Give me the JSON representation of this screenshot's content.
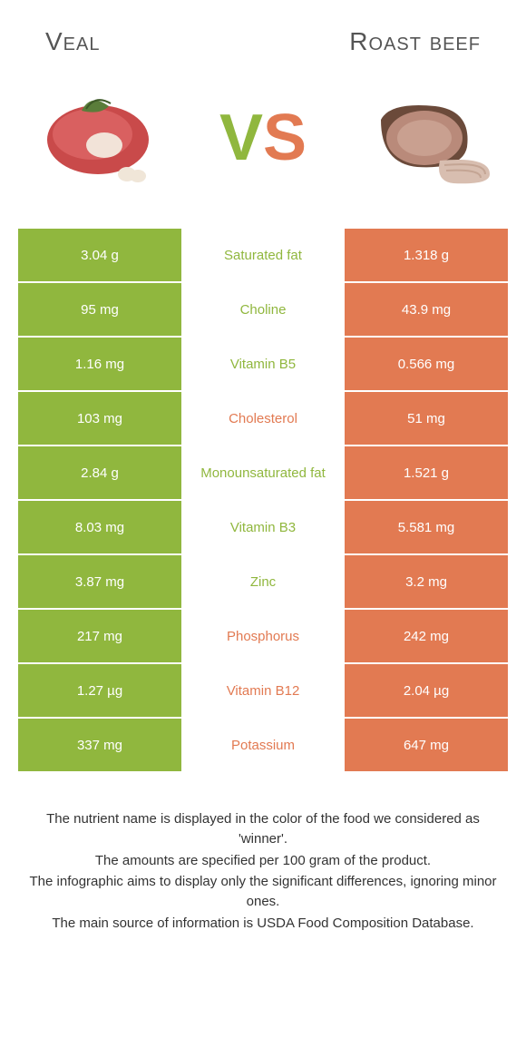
{
  "colors": {
    "left_bg": "#90b73e",
    "right_bg": "#e27a52",
    "mid_bg": "#ffffff",
    "text_white": "#ffffff",
    "vs_left": "#90b73e",
    "vs_right": "#e27a52"
  },
  "header": {
    "left_title": "Veal",
    "right_title": "Roast beef"
  },
  "vs": {
    "v": "V",
    "s": "S"
  },
  "rows": [
    {
      "left": "3.04 g",
      "label": "Saturated fat",
      "right": "1.318 g",
      "winner": "left"
    },
    {
      "left": "95 mg",
      "label": "Choline",
      "right": "43.9 mg",
      "winner": "left"
    },
    {
      "left": "1.16 mg",
      "label": "Vitamin B5",
      "right": "0.566 mg",
      "winner": "left"
    },
    {
      "left": "103 mg",
      "label": "Cholesterol",
      "right": "51 mg",
      "winner": "right"
    },
    {
      "left": "2.84 g",
      "label": "Monounsaturated fat",
      "right": "1.521 g",
      "winner": "left"
    },
    {
      "left": "8.03 mg",
      "label": "Vitamin B3",
      "right": "5.581 mg",
      "winner": "left"
    },
    {
      "left": "3.87 mg",
      "label": "Zinc",
      "right": "3.2 mg",
      "winner": "left"
    },
    {
      "left": "217 mg",
      "label": "Phosphorus",
      "right": "242 mg",
      "winner": "right"
    },
    {
      "left": "1.27 µg",
      "label": "Vitamin B12",
      "right": "2.04 µg",
      "winner": "right"
    },
    {
      "left": "337 mg",
      "label": "Potassium",
      "right": "647 mg",
      "winner": "right"
    }
  ],
  "footer": {
    "line1": "The nutrient name is displayed in the color of the food we considered as 'winner'.",
    "line2": "The amounts are specified per 100 gram of the product.",
    "line3": "The infographic aims to display only the significant differences, ignoring minor ones.",
    "line4": "The main source of information is USDA Food Composition Database."
  }
}
